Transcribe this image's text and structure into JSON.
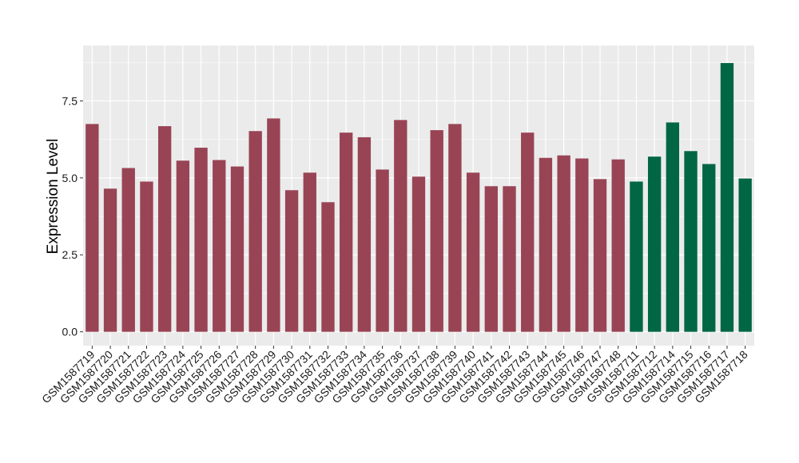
{
  "chart_data": {
    "type": "bar",
    "title": "",
    "xlabel": "",
    "ylabel": "Expression Level",
    "ylim": [
      -0.45,
      9.3
    ],
    "yticks": [
      0.0,
      2.5,
      5.0,
      7.5
    ],
    "ytick_labels": [
      "0.0",
      "2.5",
      "5.0",
      "7.5"
    ],
    "grid": true,
    "legend": "none",
    "colors": {
      "group_a": "#994455",
      "group_b": "#006644",
      "panel": "#ebebeb",
      "grid": "#ffffff"
    },
    "categories": [
      "GSM1587719",
      "GSM1587720",
      "GSM1587721",
      "GSM1587722",
      "GSM1587723",
      "GSM1587724",
      "GSM1587725",
      "GSM1587726",
      "GSM1587727",
      "GSM1587728",
      "GSM1587729",
      "GSM1587730",
      "GSM1587731",
      "GSM1587732",
      "GSM1587733",
      "GSM1587734",
      "GSM1587735",
      "GSM1587736",
      "GSM1587737",
      "GSM1587738",
      "GSM1587739",
      "GSM1587740",
      "GSM1587741",
      "GSM1587742",
      "GSM1587743",
      "GSM1587744",
      "GSM1587745",
      "GSM1587746",
      "GSM1587747",
      "GSM1587748",
      "GSM1587711",
      "GSM1587712",
      "GSM1587714",
      "GSM1587715",
      "GSM1587716",
      "GSM1587717",
      "GSM1587718"
    ],
    "values": [
      6.75,
      4.65,
      5.32,
      4.88,
      6.68,
      5.56,
      5.98,
      5.58,
      5.37,
      6.52,
      6.93,
      4.6,
      5.17,
      4.21,
      6.47,
      6.32,
      5.27,
      6.88,
      5.04,
      6.55,
      6.75,
      5.17,
      4.73,
      4.73,
      6.47,
      5.65,
      5.73,
      5.63,
      4.96,
      5.6,
      4.88,
      5.69,
      6.8,
      5.87,
      5.45,
      8.73,
      4.98
    ],
    "groups": [
      "group_a",
      "group_a",
      "group_a",
      "group_a",
      "group_a",
      "group_a",
      "group_a",
      "group_a",
      "group_a",
      "group_a",
      "group_a",
      "group_a",
      "group_a",
      "group_a",
      "group_a",
      "group_a",
      "group_a",
      "group_a",
      "group_a",
      "group_a",
      "group_a",
      "group_a",
      "group_a",
      "group_a",
      "group_a",
      "group_a",
      "group_a",
      "group_a",
      "group_a",
      "group_a",
      "group_b",
      "group_b",
      "group_b",
      "group_b",
      "group_b",
      "group_b",
      "group_b"
    ]
  }
}
